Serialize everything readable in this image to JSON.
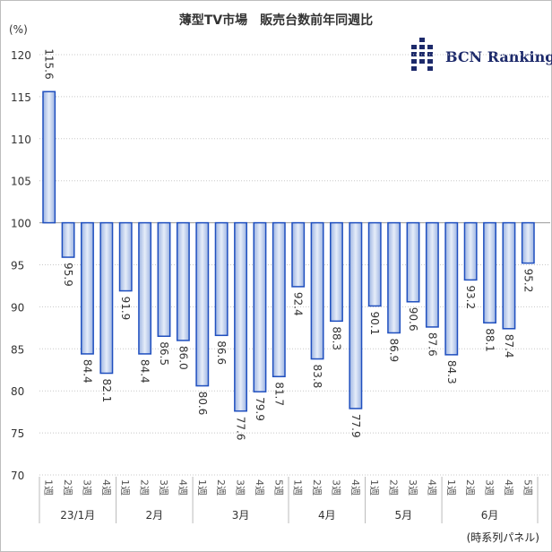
{
  "chart_data": {
    "type": "bar",
    "title": "薄型TV市場　販売台数前年同週比",
    "ylabel": "(%)",
    "ylim": [
      70,
      120
    ],
    "yticks": [
      70,
      75,
      80,
      85,
      90,
      95,
      100,
      105,
      110,
      115,
      120
    ],
    "baseline": 100,
    "grid": true,
    "categories": [
      "1週",
      "2週",
      "3週",
      "4週",
      "1週",
      "2週",
      "3週",
      "4週",
      "1週",
      "2週",
      "3週",
      "4週",
      "5週",
      "1週",
      "2週",
      "3週",
      "4週",
      "1週",
      "2週",
      "3週",
      "4週",
      "1週",
      "2週",
      "3週",
      "4週",
      "5週"
    ],
    "groups": [
      {
        "label": "23/1月",
        "count": 4
      },
      {
        "label": "2月",
        "count": 4
      },
      {
        "label": "3月",
        "count": 5
      },
      {
        "label": "4月",
        "count": 4
      },
      {
        "label": "5月",
        "count": 4
      },
      {
        "label": "6月",
        "count": 5
      }
    ],
    "values": [
      115.6,
      95.9,
      84.4,
      82.1,
      91.9,
      84.4,
      86.5,
      86.0,
      80.6,
      86.6,
      77.6,
      79.9,
      81.7,
      92.4,
      83.8,
      88.3,
      77.9,
      90.1,
      86.9,
      90.6,
      87.6,
      84.3,
      93.2,
      88.1,
      87.4,
      95.2
    ],
    "footnote": "(時系列パネル)",
    "bar_color": "#1f4fbf"
  },
  "logo": {
    "text": "BCN Ranking",
    "color": "#1d2a6b"
  }
}
